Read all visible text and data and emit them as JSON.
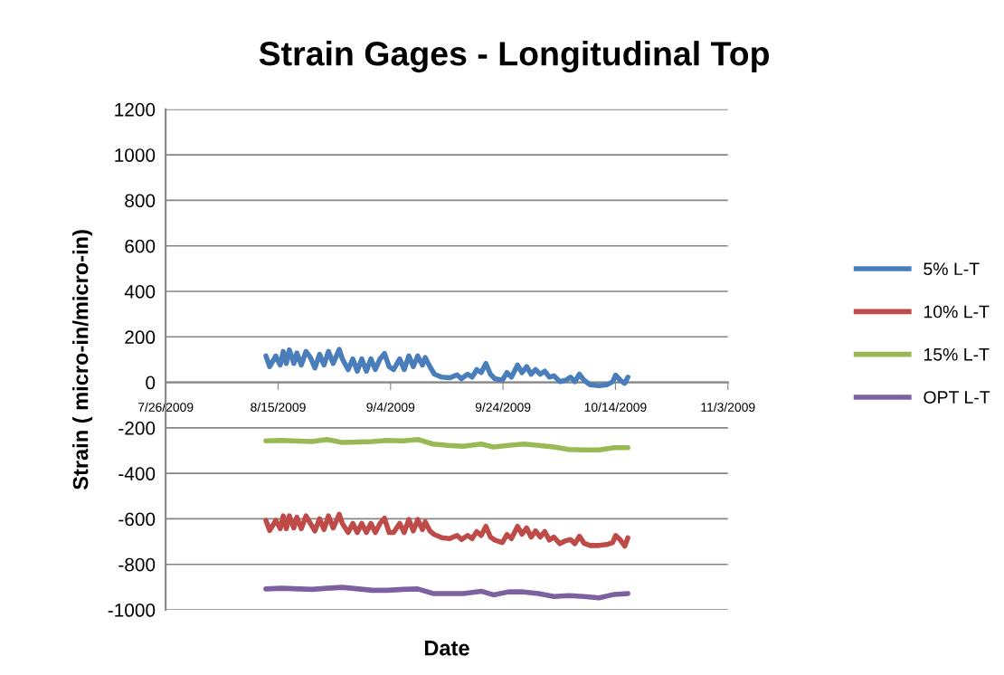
{
  "chart_data": {
    "type": "line",
    "title": "Strain Gages - Longitudinal Top",
    "xlabel": "Date",
    "ylabel": "Strain ( micro-in/micro-in)",
    "x": [
      "2009-08-12T20:00",
      "2009-08-13T12:00",
      "2009-08-14T14:00",
      "2009-08-15T09:00",
      "2009-08-15T22:00",
      "2009-08-16T11:00",
      "2009-08-17T00:00",
      "2009-08-17T19:00",
      "2009-08-18T08:00",
      "2009-08-19T03:00",
      "2009-08-19T23:00",
      "2009-08-20T18:00",
      "2009-08-21T13:00",
      "2009-08-22T09:00",
      "2009-08-23T04:00",
      "2009-08-23T23:00",
      "2009-08-24T19:00",
      "2009-08-25T21:00",
      "2009-08-26T10:00",
      "2009-08-27T11:00",
      "2009-08-28T07:00",
      "2009-08-29T02:00",
      "2009-08-29T21:00",
      "2009-08-30T17:00",
      "2009-08-31T12:00",
      "2009-09-01T07:00",
      "2009-09-02T03:00",
      "2009-09-02T22:00",
      "2009-09-03T18:00",
      "2009-09-04T13:00",
      "2009-09-05T15:00",
      "2009-09-06T10:00",
      "2009-09-07T06:00",
      "2009-09-08T01:00",
      "2009-09-08T20:00",
      "2009-09-09T16:00",
      "2009-09-10T04:00",
      "2009-09-11T00:00",
      "2009-09-11T19:00",
      "2009-09-13T03:00",
      "2009-09-14T12:00",
      "2009-09-15T20:00",
      "2009-09-16T15:00",
      "2009-09-17T17:00",
      "2009-09-18T12:00",
      "2009-09-19T08:00",
      "2009-09-20T03:00",
      "2009-09-20T23:00",
      "2009-09-21T18:00",
      "2009-09-22T13:00",
      "2009-09-23T21:00",
      "2009-09-24T17:00",
      "2009-09-25T12:00",
      "2009-09-26T14:00",
      "2009-09-27T09:00",
      "2009-09-28T05:00",
      "2009-09-29T00:00",
      "2009-09-29T19:00",
      "2009-09-30T15:00",
      "2009-10-01T10:00",
      "2009-10-02T06:00",
      "2009-10-03T01:00",
      "2009-10-04T03:00",
      "2009-10-05T04:00",
      "2009-10-06T00:00",
      "2009-10-06T19:00",
      "2009-10-07T14:00",
      "2009-10-08T10:00",
      "2009-10-09T12:00",
      "2009-10-11T02:00",
      "2009-10-12T11:00",
      "2009-10-13T12:00",
      "2009-10-14T01:00",
      "2009-10-14T21:00",
      "2009-10-15T16:00",
      "2009-10-16T05:00"
    ],
    "series": [
      {
        "name": "5% L-T",
        "color": "#4a7ebb",
        "values": [
          116,
          69,
          116,
          76,
          136,
          83,
          143,
          83,
          129,
          76,
          136,
          109,
          63,
          123,
          76,
          136,
          83,
          145,
          103,
          56,
          103,
          49,
          103,
          49,
          103,
          56,
          103,
          127,
          69,
          56,
          103,
          56,
          116,
          69,
          116,
          76,
          109,
          69,
          36,
          23,
          20,
          33,
          16,
          36,
          23,
          56,
          43,
          83,
          36,
          16,
          9,
          43,
          23,
          76,
          43,
          69,
          36,
          56,
          36,
          49,
          23,
          29,
          3,
          9,
          23,
          3,
          36,
          9,
          -11,
          -15,
          -11,
          3,
          32,
          9,
          -4,
          23
        ]
      },
      {
        "name": "10% L-T",
        "color": "#be4b48",
        "values": [
          -607,
          -651,
          -607,
          -643,
          -587,
          -643,
          -587,
          -640,
          -593,
          -643,
          -587,
          -620,
          -653,
          -600,
          -647,
          -587,
          -640,
          -580,
          -620,
          -660,
          -620,
          -660,
          -620,
          -660,
          -620,
          -660,
          -620,
          -597,
          -660,
          -660,
          -620,
          -660,
          -603,
          -653,
          -603,
          -647,
          -613,
          -653,
          -669,
          -683,
          -687,
          -673,
          -691,
          -673,
          -687,
          -656,
          -673,
          -633,
          -680,
          -693,
          -704,
          -669,
          -687,
          -633,
          -667,
          -640,
          -680,
          -653,
          -680,
          -656,
          -693,
          -680,
          -709,
          -696,
          -691,
          -709,
          -676,
          -707,
          -717,
          -717,
          -713,
          -704,
          -673,
          -693,
          -720,
          -683
        ]
      },
      {
        "name": "15% L-T",
        "color": "#98b954",
        "x": [
          "2009-08-12T20:00",
          "2009-08-15T15:00",
          "2009-08-21T00:00",
          "2009-08-23T17:00",
          "2009-08-26T10:00",
          "2009-08-31T18:00",
          "2009-09-03T11:00",
          "2009-09-06T04:00",
          "2009-09-08T20:00",
          "2009-09-11T13:00",
          "2009-09-14T05:00",
          "2009-09-16T22:00",
          "2009-09-20T03:00",
          "2009-09-22T07:00",
          "2009-09-24T23:00",
          "2009-09-27T16:00",
          "2009-09-30T08:00",
          "2009-10-03T01:00",
          "2009-10-05T17:00",
          "2009-10-08T10:00",
          "2009-10-11T02:00",
          "2009-10-13T19:00",
          "2009-10-16T05:00"
        ],
        "values": [
          -257,
          -255,
          -260,
          -251,
          -264,
          -260,
          -255,
          -257,
          -251,
          -271,
          -277,
          -281,
          -271,
          -284,
          -277,
          -271,
          -277,
          -284,
          -295,
          -297,
          -297,
          -287,
          -287
        ]
      },
      {
        "name": "OPT L-T",
        "color": "#7d60a0",
        "x": [
          "2009-08-12T20:00",
          "2009-08-15T15:00",
          "2009-08-21T00:00",
          "2009-08-23T17:00",
          "2009-08-26T10:00",
          "2009-08-31T18:00",
          "2009-09-03T11:00",
          "2009-09-06T04:00",
          "2009-09-08T20:00",
          "2009-09-11T13:00",
          "2009-09-14T05:00",
          "2009-09-16T22:00",
          "2009-09-20T03:00",
          "2009-09-22T07:00",
          "2009-09-24T23:00",
          "2009-09-27T16:00",
          "2009-09-30T08:00",
          "2009-10-03T01:00",
          "2009-10-05T17:00",
          "2009-10-08T10:00",
          "2009-10-11T02:00",
          "2009-10-13T19:00",
          "2009-10-16T05:00"
        ],
        "values": [
          -908,
          -905,
          -910,
          -905,
          -901,
          -914,
          -914,
          -910,
          -908,
          -928,
          -928,
          -928,
          -918,
          -934,
          -921,
          -921,
          -928,
          -941,
          -937,
          -941,
          -947,
          -932,
          -928
        ]
      }
    ],
    "xlim": [
      "2009-07-26",
      "2009-11-03"
    ],
    "xticks": [
      {
        "value": "2009-07-26",
        "label": "7/26/2009"
      },
      {
        "value": "2009-08-15",
        "label": "8/15/2009"
      },
      {
        "value": "2009-09-04",
        "label": "9/4/2009"
      },
      {
        "value": "2009-09-24",
        "label": "9/24/2009"
      },
      {
        "value": "2009-10-14",
        "label": "10/14/2009"
      },
      {
        "value": "2009-11-03",
        "label": "11/3/2009"
      }
    ],
    "ylim": [
      -1000,
      1200
    ],
    "yticks": [
      -1000,
      -800,
      -600,
      -400,
      -200,
      0,
      200,
      400,
      600,
      800,
      1000,
      1200
    ],
    "grid": "y",
    "legend": "right",
    "marker": "none",
    "line_style": "solid"
  }
}
